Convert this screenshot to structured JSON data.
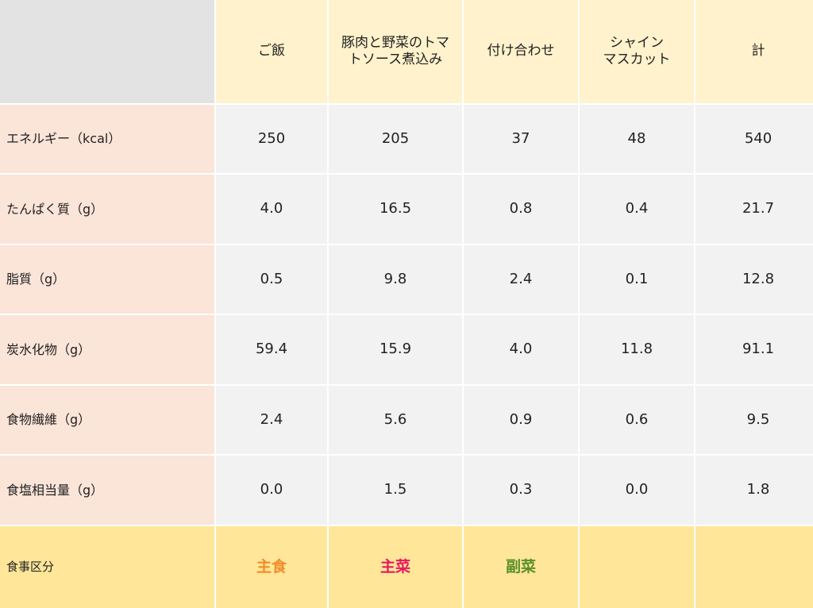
{
  "colors": {
    "header_bg": "#fff2cc",
    "row_label_bg": "#fbe4d8",
    "value_bg": "#f2f2f2",
    "corner_bg": "#e3e3e3",
    "footer_bg": "#ffe699",
    "shushoku_color": "#f28c28",
    "shusai_color": "#e8175d",
    "fukusai_color": "#5a8f29"
  },
  "header": {
    "columns": [
      {
        "line1": "ご飯",
        "line2": ""
      },
      {
        "line1": "豚肉と野菜のトマ",
        "line2": "トソース煮込み"
      },
      {
        "line1": "付け合わせ",
        "line2": ""
      },
      {
        "line1": "シャイン",
        "line2": "マスカット"
      },
      {
        "line1": "計",
        "line2": ""
      }
    ]
  },
  "rows": [
    {
      "label": "エネルギー（kcal）",
      "values": [
        "250",
        "205",
        "37",
        "48",
        "540"
      ]
    },
    {
      "label": "たんぱく質（g）",
      "values": [
        "4.0",
        "16.5",
        "0.8",
        "0.4",
        "21.7"
      ]
    },
    {
      "label": "脂質（g）",
      "values": [
        "0.5",
        "9.8",
        "2.4",
        "0.1",
        "12.8"
      ]
    },
    {
      "label": "炭水化物（g）",
      "values": [
        "59.4",
        "15.9",
        "4.0",
        "11.8",
        "91.1"
      ]
    },
    {
      "label": "食物繊維（g）",
      "values": [
        "2.4",
        "5.6",
        "0.9",
        "0.6",
        "9.5"
      ]
    },
    {
      "label": "食塩相当量（g）",
      "values": [
        "0.0",
        "1.5",
        "0.3",
        "0.0",
        "1.8"
      ]
    }
  ],
  "footer": {
    "label": "食事区分",
    "categories": [
      "主食",
      "主菜",
      "副菜",
      "",
      ""
    ]
  }
}
